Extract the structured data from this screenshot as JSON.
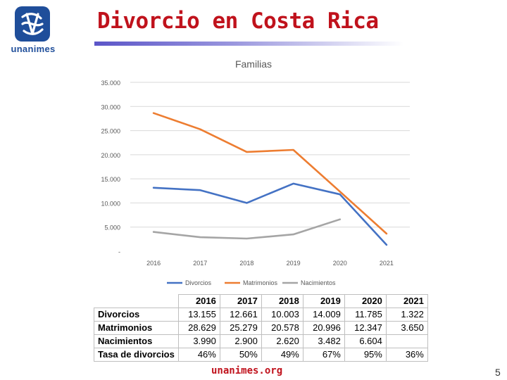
{
  "slide": {
    "title": "Divorcio en Costa Rica",
    "brand": "unanimes",
    "footer": "unanimes.org",
    "page_number": "5"
  },
  "colors": {
    "title": "#c0121c",
    "brand": "#1f4e9a",
    "divorcios": "#4472c4",
    "matrimonios": "#ed7d31",
    "nacimientos": "#a5a5a5"
  },
  "chart_data": {
    "type": "line",
    "title": "Familias",
    "categories": [
      "2016",
      "2017",
      "2018",
      "2019",
      "2020",
      "2021"
    ],
    "ylim": [
      0,
      35000
    ],
    "yticks": [
      0,
      5000,
      10000,
      15000,
      20000,
      25000,
      30000,
      35000
    ],
    "ytick_labels": [
      "-",
      "5.000",
      "10.000",
      "15.000",
      "20.000",
      "25.000",
      "30.000",
      "35.000"
    ],
    "legend_position": "bottom",
    "series": [
      {
        "name": "Divorcios",
        "values": [
          13155,
          12661,
          10003,
          14009,
          11785,
          1322
        ]
      },
      {
        "name": "Matrimonios",
        "values": [
          28629,
          25279,
          20578,
          20996,
          12347,
          3650
        ]
      },
      {
        "name": "Nacimientos",
        "values": [
          3990,
          2900,
          2620,
          3482,
          6604,
          null
        ]
      }
    ]
  },
  "table": {
    "headers": [
      "2016",
      "2017",
      "2018",
      "2019",
      "2020",
      "2021"
    ],
    "rows": [
      {
        "label": "Divorcios",
        "cells": [
          "13.155",
          "12.661",
          "10.003",
          "14.009",
          "11.785",
          "1.322"
        ]
      },
      {
        "label": "Matrimonios",
        "cells": [
          "28.629",
          "25.279",
          "20.578",
          "20.996",
          "12.347",
          "3.650"
        ]
      },
      {
        "label": "Nacimientos",
        "cells": [
          "3.990",
          "2.900",
          "2.620",
          "3.482",
          "6.604",
          ""
        ]
      },
      {
        "label": "Tasa de divorcios",
        "cells": [
          "46%",
          "50%",
          "49%",
          "67%",
          "95%",
          "36%"
        ]
      }
    ]
  }
}
